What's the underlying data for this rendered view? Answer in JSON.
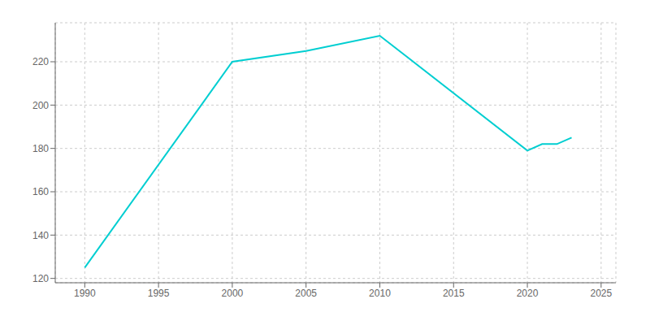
{
  "chart_data": {
    "type": "line",
    "x": [
      1990,
      2000,
      2005,
      2010,
      2020,
      2021,
      2022,
      2023
    ],
    "values": [
      125,
      220,
      225,
      232,
      179,
      182,
      182,
      185
    ],
    "color": "#00CED1",
    "xlim": [
      1988,
      2026
    ],
    "ylim": [
      118,
      238
    ],
    "xticks": [
      1990,
      1995,
      2000,
      2005,
      2010,
      2015,
      2020,
      2025
    ],
    "yticks": [
      120,
      140,
      160,
      180,
      200,
      220
    ],
    "grid": true
  }
}
